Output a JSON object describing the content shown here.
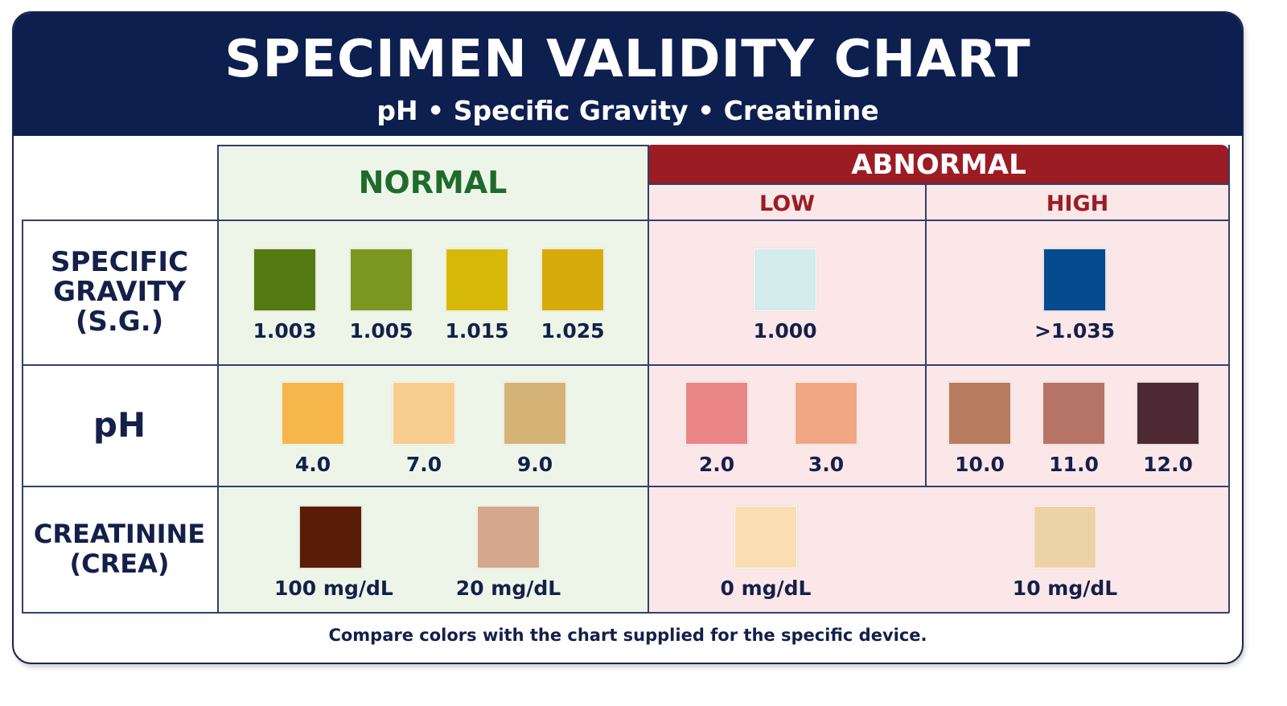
{
  "header": {
    "title": "SPECIMEN VALIDITY CHART",
    "subtitle": "pH • Specific Gravity • Creatinine"
  },
  "columns": {
    "normal": "NORMAL",
    "abnormal": "ABNORMAL",
    "low": "LOW",
    "high": "HIGH"
  },
  "rows": {
    "sg": {
      "line1": "SPECIFIC",
      "line2": "GRAVITY",
      "line3": "(S.G.)"
    },
    "ph": {
      "line1": "pH"
    },
    "crea": {
      "line1": "CREATININE",
      "line2": "(CREA)"
    }
  },
  "swatches": {
    "sg_normal": [
      {
        "label": "1.003",
        "color": "#557a12"
      },
      {
        "label": "1.005",
        "color": "#7a9722"
      },
      {
        "label": "1.015",
        "color": "#d7b90a"
      },
      {
        "label": "1.025",
        "color": "#d8ab0c"
      }
    ],
    "sg_low": [
      {
        "label": "1.000",
        "color": "#d3ebea"
      }
    ],
    "sg_high": [
      {
        "label": ">1.035",
        "color": "#064a8f"
      }
    ],
    "ph_normal": [
      {
        "label": "4.0",
        "color": "#f6b64c"
      },
      {
        "label": "7.0",
        "color": "#f8cd8e"
      },
      {
        "label": "9.0",
        "color": "#d5b275"
      }
    ],
    "ph_low": [
      {
        "label": "2.0",
        "color": "#e98584"
      },
      {
        "label": "3.0",
        "color": "#f1a784"
      }
    ],
    "ph_high": [
      {
        "label": "10.0",
        "color": "#b87c60"
      },
      {
        "label": "11.0",
        "color": "#b57466"
      },
      {
        "label": "12.0",
        "color": "#4c2934"
      }
    ],
    "crea_normal": [
      {
        "label": "100 mg/dL",
        "color": "#5a1b07"
      },
      {
        "label": "20 mg/dL",
        "color": "#d4a88c"
      }
    ],
    "crea_abnormal": [
      {
        "label": "0 mg/dL",
        "color": "#f9deb4"
      },
      {
        "label": "10 mg/dL",
        "color": "#ecd3a7"
      }
    ]
  },
  "footer": "Compare colors with the chart supplied for the specific device."
}
